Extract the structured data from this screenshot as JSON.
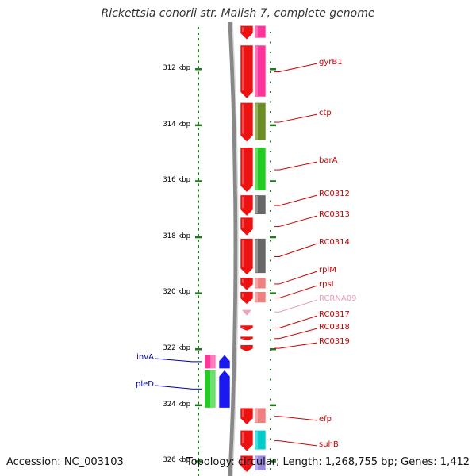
{
  "title": "Rickettsia conorii str. Malish 7, complete genome",
  "footer": {
    "accession": "Accession: NC_003103",
    "summary": "Topology: circular; Length: 1,268,755 bp; Genes: 1,412"
  },
  "colors": {
    "forward_gene": "#ee1111",
    "reverse_gene": "#1a1aee",
    "rna_gene": "#f0a0c0",
    "backbone": "#888888",
    "ruler_tick": "#1f7a1f",
    "forward_label": "#cc0000",
    "reverse_label": "#0000aa",
    "rna_label": "#e89ab8"
  },
  "ruler": {
    "unit": "kbp",
    "ticks": [
      {
        "kbp": 312,
        "label": "312 kbp"
      },
      {
        "kbp": 314,
        "label": "314 kbp"
      },
      {
        "kbp": 316,
        "label": "316 kbp"
      },
      {
        "kbp": 318,
        "label": "318 kbp"
      },
      {
        "kbp": 320,
        "label": "320 kbp"
      },
      {
        "kbp": 322,
        "label": "322 kbp"
      },
      {
        "kbp": 324,
        "label": "324 kbp"
      },
      {
        "kbp": 326,
        "label": "326 kbp"
      }
    ]
  },
  "genes": [
    {
      "name": "",
      "strand": "+",
      "start_kbp": 310.45,
      "end_kbp": 310.95,
      "cog_color": "#ff3399",
      "label_color": "#cc0000"
    },
    {
      "name": "gyrB1",
      "strand": "+",
      "start_kbp": 311.15,
      "end_kbp": 313.05,
      "cog_color": "#ff3399",
      "label_color": "#cc0000"
    },
    {
      "name": "ctp",
      "strand": "+",
      "start_kbp": 313.2,
      "end_kbp": 314.6,
      "cog_color": "#6b8e23",
      "label_color": "#cc0000"
    },
    {
      "name": "barA",
      "strand": "+",
      "start_kbp": 314.8,
      "end_kbp": 316.4,
      "cog_color": "#22cc22",
      "label_color": "#cc0000"
    },
    {
      "name": "RC0312",
      "strand": "+",
      "start_kbp": 316.5,
      "end_kbp": 317.25,
      "cog_color": "#666666",
      "label_color": "#cc0000"
    },
    {
      "name": "RC0313",
      "strand": "+",
      "start_kbp": 317.3,
      "end_kbp": 317.95,
      "cog_color": "",
      "label_color": "#cc0000"
    },
    {
      "name": "RC0314",
      "strand": "+",
      "start_kbp": 318.05,
      "end_kbp": 319.35,
      "cog_color": "#666666",
      "label_color": "#cc0000"
    },
    {
      "name": "rplM",
      "strand": "+",
      "start_kbp": 319.45,
      "end_kbp": 319.9,
      "cog_color": "#f08080",
      "label_color": "#cc0000"
    },
    {
      "name": "rpsI",
      "strand": "+",
      "start_kbp": 319.95,
      "end_kbp": 320.4,
      "cog_color": "#f08080",
      "label_color": "#cc0000"
    },
    {
      "name": "RCRNA09",
      "strand": "+",
      "start_kbp": 320.6,
      "end_kbp": 320.75,
      "cog_color": "",
      "label_color": "#e89ab8",
      "rna": true
    },
    {
      "name": "RC0317",
      "strand": "+",
      "start_kbp": 321.15,
      "end_kbp": 321.35,
      "cog_color": "",
      "label_color": "#cc0000"
    },
    {
      "name": "RC0318",
      "strand": "+",
      "start_kbp": 321.55,
      "end_kbp": 321.7,
      "cog_color": "",
      "label_color": "#cc0000"
    },
    {
      "name": "RC0319",
      "strand": "+",
      "start_kbp": 321.85,
      "end_kbp": 322.1,
      "cog_color": "",
      "label_color": "#cc0000"
    },
    {
      "name": "invA",
      "strand": "-",
      "start_kbp": 322.2,
      "end_kbp": 322.7,
      "cog_color": "#ff3399",
      "label_color": "#0000aa"
    },
    {
      "name": "pleD",
      "strand": "-",
      "start_kbp": 322.75,
      "end_kbp": 324.1,
      "cog_color": "#22cc22",
      "label_color": "#0000aa"
    },
    {
      "name": "efp",
      "strand": "+",
      "start_kbp": 324.1,
      "end_kbp": 324.7,
      "cog_color": "#f08080",
      "label_color": "#cc0000"
    },
    {
      "name": "suhB",
      "strand": "+",
      "start_kbp": 324.9,
      "end_kbp": 325.65,
      "cog_color": "#00cccc",
      "label_color": "#cc0000"
    },
    {
      "name": "",
      "strand": "+",
      "start_kbp": 325.8,
      "end_kbp": 326.4,
      "cog_color": "#9988dd",
      "label_color": "#cc0000"
    }
  ]
}
